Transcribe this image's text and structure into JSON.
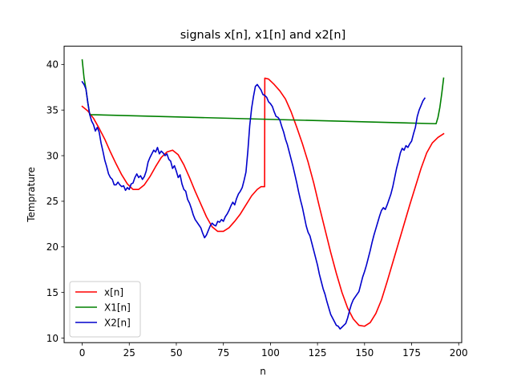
{
  "chart_data": {
    "type": "line",
    "title": "signals x[n], x1[n] and x2[n]",
    "xlabel": "n",
    "ylabel": "Temprature",
    "xlim": [
      -9.6,
      201.6
    ],
    "ylim": [
      9.5,
      42.0
    ],
    "xticks": [
      0,
      25,
      50,
      75,
      100,
      125,
      150,
      175,
      200
    ],
    "yticks": [
      10,
      15,
      20,
      25,
      30,
      35,
      40
    ],
    "grid": false,
    "legend_position": "lower-left",
    "series": [
      {
        "name": "x[n]",
        "color": "#ff0000",
        "points": [
          [
            0,
            35.4
          ],
          [
            3,
            34.9
          ],
          [
            6,
            34.1
          ],
          [
            9,
            33.0
          ],
          [
            12,
            31.8
          ],
          [
            15,
            30.4
          ],
          [
            18,
            29.1
          ],
          [
            21,
            27.9
          ],
          [
            24,
            26.9
          ],
          [
            27,
            26.3
          ],
          [
            30,
            26.3
          ],
          [
            33,
            26.8
          ],
          [
            36,
            27.7
          ],
          [
            39,
            28.8
          ],
          [
            42,
            29.8
          ],
          [
            45,
            30.4
          ],
          [
            48,
            30.6
          ],
          [
            51,
            30.1
          ],
          [
            54,
            29.0
          ],
          [
            57,
            27.6
          ],
          [
            60,
            26.1
          ],
          [
            63,
            24.7
          ],
          [
            66,
            23.3
          ],
          [
            69,
            22.2
          ],
          [
            72,
            21.7
          ],
          [
            75,
            21.7
          ],
          [
            78,
            22.1
          ],
          [
            81,
            22.8
          ],
          [
            84,
            23.6
          ],
          [
            87,
            24.6
          ],
          [
            90,
            25.6
          ],
          [
            93,
            26.3
          ],
          [
            95,
            26.6
          ],
          [
            96.9,
            26.6
          ],
          [
            97,
            38.5
          ],
          [
            99,
            38.4
          ],
          [
            102,
            37.8
          ],
          [
            105,
            37.1
          ],
          [
            108,
            36.2
          ],
          [
            111,
            34.8
          ],
          [
            114,
            33.1
          ],
          [
            117,
            31.3
          ],
          [
            120,
            29.3
          ],
          [
            123,
            27.0
          ],
          [
            126,
            24.4
          ],
          [
            129,
            21.9
          ],
          [
            132,
            19.4
          ],
          [
            135,
            17.1
          ],
          [
            138,
            15.0
          ],
          [
            141,
            13.3
          ],
          [
            144,
            12.1
          ],
          [
            147,
            11.4
          ],
          [
            150,
            11.3
          ],
          [
            153,
            11.7
          ],
          [
            156,
            12.7
          ],
          [
            159,
            14.2
          ],
          [
            162,
            16.2
          ],
          [
            165,
            18.3
          ],
          [
            168,
            20.4
          ],
          [
            171,
            22.5
          ],
          [
            174,
            24.6
          ],
          [
            177,
            26.6
          ],
          [
            180,
            28.6
          ],
          [
            183,
            30.3
          ],
          [
            186,
            31.4
          ],
          [
            189,
            32.0
          ],
          [
            192,
            32.4
          ]
        ]
      },
      {
        "name": "X1[n]",
        "color": "#008000",
        "points": [
          [
            0,
            40.5
          ],
          [
            1,
            38.5
          ],
          [
            2,
            37.3
          ],
          [
            3,
            35.8
          ],
          [
            4,
            34.5
          ],
          [
            188,
            33.5
          ],
          [
            189,
            34.2
          ],
          [
            190,
            35.3
          ],
          [
            191,
            36.8
          ],
          [
            192,
            38.5
          ]
        ]
      },
      {
        "name": "X2[n]",
        "color": "#0000cc",
        "points": [
          [
            0,
            38.1
          ],
          [
            1,
            37.8
          ],
          [
            2,
            37.3
          ],
          [
            3,
            35.8
          ],
          [
            4,
            34.5
          ],
          [
            5,
            33.8
          ],
          [
            6,
            33.4
          ],
          [
            7,
            32.7
          ],
          [
            8,
            33.1
          ],
          [
            9,
            32.6
          ],
          [
            10,
            31.4
          ],
          [
            11,
            30.5
          ],
          [
            12,
            29.5
          ],
          [
            13,
            28.8
          ],
          [
            14,
            28.0
          ],
          [
            15,
            27.6
          ],
          [
            16,
            27.4
          ],
          [
            17,
            26.8
          ],
          [
            18,
            26.8
          ],
          [
            19,
            27.1
          ],
          [
            20,
            26.8
          ],
          [
            21,
            26.6
          ],
          [
            22,
            26.7
          ],
          [
            23,
            26.2
          ],
          [
            24,
            26.5
          ],
          [
            25,
            26.3
          ],
          [
            26,
            26.9
          ],
          [
            27,
            27.0
          ],
          [
            28,
            27.6
          ],
          [
            29,
            28.0
          ],
          [
            30,
            27.6
          ],
          [
            31,
            27.8
          ],
          [
            32,
            27.4
          ],
          [
            33,
            27.7
          ],
          [
            34,
            28.3
          ],
          [
            35,
            29.3
          ],
          [
            36,
            29.8
          ],
          [
            37,
            30.2
          ],
          [
            38,
            30.6
          ],
          [
            39,
            30.4
          ],
          [
            40,
            30.9
          ],
          [
            41,
            30.2
          ],
          [
            42,
            30.5
          ],
          [
            43,
            30.3
          ],
          [
            44,
            30.0
          ],
          [
            45,
            30.2
          ],
          [
            46,
            29.6
          ],
          [
            47,
            29.4
          ],
          [
            48,
            28.6
          ],
          [
            49,
            28.9
          ],
          [
            50,
            28.3
          ],
          [
            51,
            27.6
          ],
          [
            52,
            27.9
          ],
          [
            53,
            26.9
          ],
          [
            54,
            26.3
          ],
          [
            55,
            26.1
          ],
          [
            56,
            25.2
          ],
          [
            57,
            24.8
          ],
          [
            58,
            24.2
          ],
          [
            59,
            23.5
          ],
          [
            60,
            23.0
          ],
          [
            61,
            22.7
          ],
          [
            62,
            22.4
          ],
          [
            63,
            22.1
          ],
          [
            64,
            21.5
          ],
          [
            65,
            21.0
          ],
          [
            66,
            21.3
          ],
          [
            67,
            21.8
          ],
          [
            68,
            22.3
          ],
          [
            69,
            22.6
          ],
          [
            70,
            22.4
          ],
          [
            71,
            22.3
          ],
          [
            72,
            22.8
          ],
          [
            73,
            22.7
          ],
          [
            74,
            23.0
          ],
          [
            75,
            22.8
          ],
          [
            76,
            23.3
          ],
          [
            77,
            23.6
          ],
          [
            78,
            24.0
          ],
          [
            79,
            24.5
          ],
          [
            80,
            24.9
          ],
          [
            81,
            24.6
          ],
          [
            82,
            25.3
          ],
          [
            83,
            25.8
          ],
          [
            84,
            26.1
          ],
          [
            85,
            26.5
          ],
          [
            86,
            27.3
          ],
          [
            87,
            28.2
          ],
          [
            88,
            30.5
          ],
          [
            89,
            33.3
          ],
          [
            90,
            35.2
          ],
          [
            91,
            36.5
          ],
          [
            92,
            37.6
          ],
          [
            93,
            37.8
          ],
          [
            94,
            37.5
          ],
          [
            95,
            37.2
          ],
          [
            96,
            36.7
          ],
          [
            97,
            36.6
          ],
          [
            98,
            36.4
          ],
          [
            99,
            35.9
          ],
          [
            100,
            35.7
          ],
          [
            101,
            35.4
          ],
          [
            102,
            34.8
          ],
          [
            103,
            34.3
          ],
          [
            104,
            34.2
          ],
          [
            105,
            33.9
          ],
          [
            106,
            33.2
          ],
          [
            107,
            32.6
          ],
          [
            108,
            31.8
          ],
          [
            109,
            31.2
          ],
          [
            110,
            30.4
          ],
          [
            111,
            29.6
          ],
          [
            112,
            28.8
          ],
          [
            113,
            27.9
          ],
          [
            114,
            27.0
          ],
          [
            115,
            26.0
          ],
          [
            116,
            25.1
          ],
          [
            117,
            24.3
          ],
          [
            118,
            23.3
          ],
          [
            119,
            22.3
          ],
          [
            120,
            21.6
          ],
          [
            121,
            21.2
          ],
          [
            122,
            20.4
          ],
          [
            123,
            19.6
          ],
          [
            124,
            18.8
          ],
          [
            125,
            18.0
          ],
          [
            126,
            17.0
          ],
          [
            127,
            16.2
          ],
          [
            128,
            15.4
          ],
          [
            129,
            14.8
          ],
          [
            130,
            14.0
          ],
          [
            131,
            13.3
          ],
          [
            132,
            12.6
          ],
          [
            133,
            12.2
          ],
          [
            134,
            11.8
          ],
          [
            135,
            11.4
          ],
          [
            136,
            11.3
          ],
          [
            137,
            11.0
          ],
          [
            138,
            11.2
          ],
          [
            139,
            11.4
          ],
          [
            140,
            11.6
          ],
          [
            141,
            12.2
          ],
          [
            142,
            13.0
          ],
          [
            143,
            13.7
          ],
          [
            144,
            14.2
          ],
          [
            145,
            14.5
          ],
          [
            146,
            14.8
          ],
          [
            147,
            15.1
          ],
          [
            148,
            15.9
          ],
          [
            149,
            16.7
          ],
          [
            150,
            17.3
          ],
          [
            151,
            18.0
          ],
          [
            152,
            18.8
          ],
          [
            153,
            19.6
          ],
          [
            154,
            20.5
          ],
          [
            155,
            21.3
          ],
          [
            156,
            22.0
          ],
          [
            157,
            22.7
          ],
          [
            158,
            23.4
          ],
          [
            159,
            24.0
          ],
          [
            160,
            24.3
          ],
          [
            161,
            24.1
          ],
          [
            162,
            24.6
          ],
          [
            163,
            25.2
          ],
          [
            164,
            25.8
          ],
          [
            165,
            26.6
          ],
          [
            166,
            27.6
          ],
          [
            167,
            28.6
          ],
          [
            168,
            29.4
          ],
          [
            169,
            30.3
          ],
          [
            170,
            30.8
          ],
          [
            171,
            30.6
          ],
          [
            172,
            31.1
          ],
          [
            173,
            30.9
          ],
          [
            174,
            31.3
          ],
          [
            175,
            31.6
          ],
          [
            176,
            32.4
          ],
          [
            177,
            33.1
          ],
          [
            178,
            34.3
          ],
          [
            179,
            35.0
          ],
          [
            180,
            35.5
          ],
          [
            181,
            36.0
          ],
          [
            182,
            36.3
          ]
        ]
      }
    ]
  }
}
